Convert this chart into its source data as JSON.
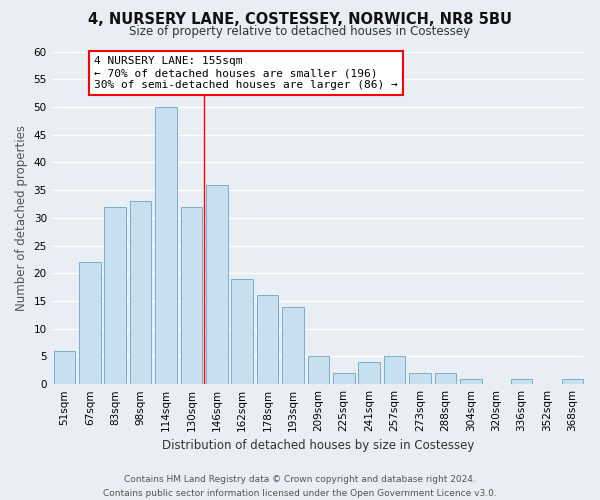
{
  "title": "4, NURSERY LANE, COSTESSEY, NORWICH, NR8 5BU",
  "subtitle": "Size of property relative to detached houses in Costessey",
  "xlabel": "Distribution of detached houses by size in Costessey",
  "ylabel": "Number of detached properties",
  "bar_color": "#c8dff0",
  "bar_edge_color": "#7aaecc",
  "categories": [
    "51sqm",
    "67sqm",
    "83sqm",
    "98sqm",
    "114sqm",
    "130sqm",
    "146sqm",
    "162sqm",
    "178sqm",
    "193sqm",
    "209sqm",
    "225sqm",
    "241sqm",
    "257sqm",
    "273sqm",
    "288sqm",
    "304sqm",
    "320sqm",
    "336sqm",
    "352sqm",
    "368sqm"
  ],
  "values": [
    6,
    22,
    32,
    33,
    50,
    32,
    36,
    19,
    16,
    14,
    5,
    2,
    4,
    5,
    2,
    2,
    1,
    0,
    1,
    0,
    1
  ],
  "ylim": [
    0,
    60
  ],
  "yticks": [
    0,
    5,
    10,
    15,
    20,
    25,
    30,
    35,
    40,
    45,
    50,
    55,
    60
  ],
  "reference_bar_index": 6,
  "annotation_line1": "4 NURSERY LANE: 155sqm",
  "annotation_line2": "← 70% of detached houses are smaller (196)",
  "annotation_line3": "30% of semi-detached houses are larger (86) →",
  "footer_line1": "Contains HM Land Registry data © Crown copyright and database right 2024.",
  "footer_line2": "Contains public sector information licensed under the Open Government Licence v3.0.",
  "background_color": "#e8eef4",
  "grid_color": "#ffffff",
  "title_fontsize": 10.5,
  "subtitle_fontsize": 8.5,
  "axis_label_fontsize": 8.5,
  "tick_fontsize": 7.5,
  "annotation_fontsize": 8.0,
  "footer_fontsize": 6.5
}
